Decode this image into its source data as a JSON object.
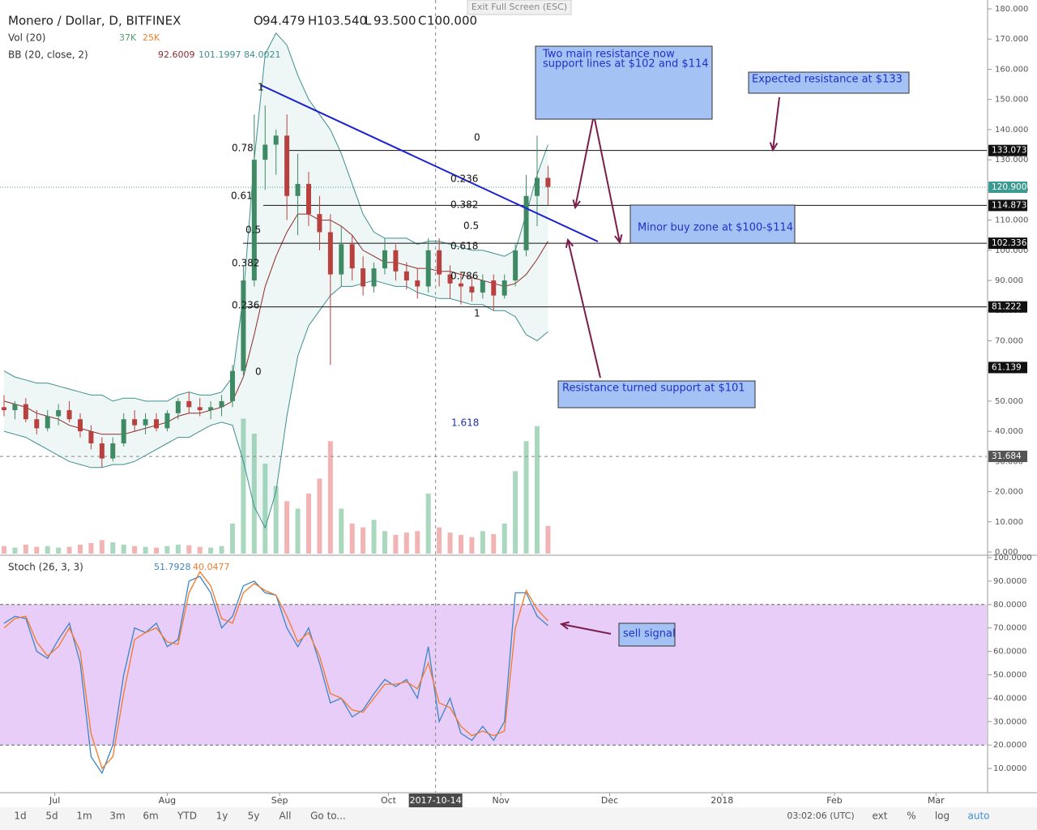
{
  "chart_data": [
    {
      "type": "candlestick",
      "title": "Monero / Dollar, D, BITFINEX",
      "ohlc_legend": [
        {
          "key": "O",
          "value": "94.479"
        },
        {
          "key": "H",
          "value": "103.540"
        },
        {
          "key": "L",
          "value": "93.500"
        },
        {
          "key": "C",
          "value": "100.000"
        }
      ],
      "x": [
        "2017-06-17",
        "2017-06-20",
        "2017-06-23",
        "2017-06-26",
        "2017-06-29",
        "2017-07-02",
        "2017-07-05",
        "2017-07-08",
        "2017-07-11",
        "2017-07-14",
        "2017-07-17",
        "2017-07-20",
        "2017-07-23",
        "2017-07-26",
        "2017-07-29",
        "2017-08-01",
        "2017-08-04",
        "2017-08-07",
        "2017-08-10",
        "2017-08-13",
        "2017-08-16",
        "2017-08-19",
        "2017-08-22",
        "2017-08-25",
        "2017-08-28",
        "2017-08-31",
        "2017-09-03",
        "2017-09-06",
        "2017-09-09",
        "2017-09-12",
        "2017-09-15",
        "2017-09-18",
        "2017-09-21",
        "2017-09-24",
        "2017-09-27",
        "2017-09-30",
        "2017-10-03",
        "2017-10-06",
        "2017-10-09",
        "2017-10-12",
        "2017-10-15",
        "2017-10-18",
        "2017-10-21",
        "2017-10-24",
        "2017-10-27",
        "2017-10-30",
        "2017-11-02",
        "2017-11-05",
        "2017-11-08",
        "2017-11-11",
        "2017-11-14"
      ],
      "open": [
        48,
        47,
        49,
        44,
        41,
        45,
        47,
        44,
        40,
        36,
        31,
        36,
        44,
        42,
        44,
        41,
        46,
        50,
        48,
        47,
        48,
        50,
        60,
        90,
        130,
        135,
        138,
        118,
        122,
        112,
        106,
        92,
        102,
        94,
        88,
        94,
        100,
        93,
        90,
        88,
        100,
        92,
        89,
        88,
        86,
        90,
        85,
        90,
        100,
        118,
        124
      ],
      "high": [
        52,
        50,
        51,
        47,
        47,
        49,
        50,
        46,
        42,
        38,
        38,
        46,
        47,
        46,
        46,
        47,
        51,
        53,
        51,
        50,
        52,
        62,
        95,
        145,
        148,
        140,
        145,
        132,
        126,
        118,
        112,
        108,
        105,
        98,
        96,
        104,
        102,
        96,
        94,
        104,
        104,
        95,
        93,
        91,
        92,
        92,
        92,
        102,
        125,
        138,
        128
      ],
      "low": [
        45,
        44,
        43,
        39,
        40,
        42,
        43,
        38,
        34,
        28,
        30,
        35,
        40,
        39,
        40,
        40,
        44,
        46,
        45,
        44,
        45,
        48,
        58,
        88,
        120,
        125,
        110,
        105,
        108,
        100,
        62,
        88,
        90,
        85,
        86,
        92,
        90,
        87,
        84,
        86,
        88,
        84,
        82,
        83,
        84,
        80,
        84,
        88,
        98,
        108,
        115
      ],
      "close": [
        47,
        49,
        44,
        41,
        45,
        47,
        44,
        40,
        36,
        31,
        36,
        44,
        42,
        44,
        41,
        46,
        50,
        48,
        47,
        48,
        50,
        60,
        90,
        130,
        135,
        138,
        118,
        122,
        112,
        106,
        92,
        102,
        94,
        88,
        94,
        100,
        93,
        90,
        88,
        100,
        92,
        89,
        88,
        86,
        90,
        85,
        90,
        100,
        118,
        124,
        121
      ],
      "up_color": "#3f8a64",
      "down_color": "#b8403f",
      "xlim": [
        "2017-06-17",
        "2018-03-15"
      ],
      "xticks": [
        {
          "value": "2017-07-01",
          "label": "Jul"
        },
        {
          "value": "2017-08-01",
          "label": "Aug"
        },
        {
          "value": "2017-09-01",
          "label": "Sep"
        },
        {
          "value": "2017-10-01",
          "label": "Oct"
        },
        {
          "value": "2017-11-01",
          "label": "Nov"
        },
        {
          "value": "2017-12-01",
          "label": "Dec"
        },
        {
          "value": "2018-01-01",
          "label": "2018"
        },
        {
          "value": "2018-02-01",
          "label": "Feb"
        },
        {
          "value": "2018-03-01",
          "label": "Mar"
        }
      ],
      "ylim": [
        0,
        180
      ],
      "yticks": [
        {
          "value": 0,
          "label": "0.000"
        },
        {
          "value": 10,
          "label": "10.000"
        },
        {
          "value": 20,
          "label": "20.000"
        },
        {
          "value": 30,
          "label": "30.000"
        },
        {
          "value": 40,
          "label": "40.000"
        },
        {
          "value": 50,
          "label": "50.000"
        },
        {
          "value": 60,
          "label": "60.000"
        },
        {
          "value": 70,
          "label": "70.000"
        },
        {
          "value": 80,
          "label": "80.000"
        },
        {
          "value": 90,
          "label": "90.000"
        },
        {
          "value": 100,
          "label": "100.000"
        },
        {
          "value": 110,
          "label": "110.000"
        },
        {
          "value": 120,
          "label": "120.000"
        },
        {
          "value": 130,
          "label": "130.000"
        },
        {
          "value": 140,
          "label": "140.000"
        },
        {
          "value": 150,
          "label": "150.000"
        },
        {
          "value": 160,
          "label": "160.000"
        },
        {
          "value": 170,
          "label": "170.000"
        },
        {
          "value": 180,
          "label": "180.000"
        }
      ],
      "bb": {
        "name": "BB (20, close, 2)",
        "legend": [
          "92.6009",
          "101.1997",
          "84.0021"
        ],
        "line_color": "#3f8f8f",
        "mid_color": "#8b2b2b",
        "upper": [
          60,
          58,
          57,
          56,
          56,
          55,
          54,
          53,
          52,
          52,
          50,
          51,
          51,
          50,
          50,
          50,
          52,
          53,
          52,
          52,
          53,
          58,
          85,
          130,
          165,
          172,
          168,
          158,
          150,
          145,
          140,
          132,
          122,
          112,
          106,
          104,
          104,
          104,
          102,
          103,
          103,
          102,
          101,
          100,
          100,
          99,
          98,
          100,
          112,
          125,
          135
        ],
        "middle": [
          50,
          49,
          48,
          46,
          45,
          44,
          42,
          41,
          40,
          39,
          39,
          39,
          40,
          41,
          42,
          43,
          45,
          46,
          46,
          47,
          48,
          50,
          58,
          72,
          88,
          98,
          106,
          112,
          112,
          110,
          110,
          108,
          105,
          100,
          98,
          96,
          96,
          95,
          94,
          94,
          93,
          93,
          92,
          91,
          90,
          89,
          88,
          89,
          92,
          97,
          103
        ],
        "lower": [
          40,
          39,
          38,
          36,
          34,
          32,
          30,
          29,
          28,
          28,
          29,
          29,
          30,
          32,
          34,
          36,
          38,
          38,
          40,
          42,
          43,
          42,
          30,
          15,
          8,
          20,
          45,
          65,
          75,
          80,
          85,
          88,
          88,
          89,
          90,
          89,
          88,
          88,
          86,
          85,
          84,
          84,
          83,
          82,
          82,
          80,
          80,
          78,
          72,
          70,
          73
        ]
      },
      "volume": {
        "name": "Vol (20)",
        "legend": [
          "37K",
          "25K"
        ],
        "ylim": [
          0,
          200
        ],
        "up_color": "#a9d8bf",
        "down_color": "#f1b3b3",
        "values": [
          10,
          8,
          12,
          9,
          10,
          8,
          9,
          12,
          14,
          18,
          15,
          12,
          10,
          9,
          8,
          10,
          12,
          11,
          9,
          8,
          10,
          40,
          180,
          160,
          120,
          90,
          70,
          60,
          80,
          100,
          150,
          60,
          40,
          35,
          45,
          30,
          25,
          28,
          30,
          80,
          35,
          28,
          25,
          22,
          30,
          26,
          40,
          110,
          150,
          170,
          37
        ]
      },
      "levels": [
        {
          "value": 133.073,
          "label": "133.073"
        },
        {
          "value": 120.9,
          "label": "120.900"
        },
        {
          "value": 114.873,
          "label": "114.873"
        },
        {
          "value": 102.336,
          "label": "102.336"
        },
        {
          "value": 81.222,
          "label": "81.222"
        },
        {
          "value": 61.139,
          "label": "61.139"
        },
        {
          "value": 31.684,
          "label": "31.684"
        }
      ],
      "crosshair": {
        "x": "2017-10-14",
        "label": "2017-10-14"
      }
    },
    {
      "type": "line",
      "title": "Stoch (26, 3, 3)",
      "series": [
        {
          "color": "#3d85c6",
          "legend": "51.7928",
          "values": [
            72,
            75,
            74,
            60,
            57,
            65,
            72,
            55,
            15,
            8,
            20,
            50,
            70,
            68,
            72,
            62,
            65,
            90,
            92,
            85,
            70,
            75,
            88,
            90,
            85,
            84,
            70,
            62,
            70,
            55,
            38,
            40,
            32,
            35,
            42,
            48,
            45,
            48,
            40,
            62,
            30,
            40,
            25,
            22,
            28,
            22,
            30,
            85,
            85,
            75,
            71
          ]
        },
        {
          "color": "#f07a2a",
          "legend": "40.0477",
          "values": [
            70,
            74,
            75,
            64,
            58,
            62,
            70,
            60,
            25,
            10,
            15,
            42,
            65,
            68,
            70,
            64,
            63,
            85,
            94,
            88,
            74,
            72,
            85,
            89,
            86,
            84,
            75,
            64,
            68,
            58,
            42,
            40,
            35,
            34,
            40,
            46,
            46,
            47,
            44,
            55,
            38,
            36,
            28,
            24,
            26,
            24,
            26,
            70,
            86,
            78,
            73
          ]
        }
      ],
      "band": [
        20,
        80
      ],
      "band_color": "#e7cdf8",
      "ylim": [
        0,
        100
      ],
      "yticks": [
        {
          "value": 10,
          "label": "10.0000"
        },
        {
          "value": 20,
          "label": "20.0000"
        },
        {
          "value": 30,
          "label": "30.0000"
        },
        {
          "value": 40,
          "label": "40.0000"
        },
        {
          "value": 50,
          "label": "50.0000"
        },
        {
          "value": 60,
          "label": "60.0000"
        },
        {
          "value": 70,
          "label": "70.0000"
        },
        {
          "value": 80,
          "label": "80.0000"
        },
        {
          "value": 90,
          "label": "90.0000"
        },
        {
          "value": 100,
          "label": "100.0000"
        }
      ]
    }
  ],
  "annotations": {
    "boxes": [
      {
        "lines": [
          "Two main resistance now",
          "support lines at $102 and $114"
        ]
      },
      {
        "lines": [
          "Expected resistance at $133"
        ]
      },
      {
        "lines": [
          "Minor buy zone at $100-$114"
        ]
      },
      {
        "lines": [
          "Resistance turned support at $101"
        ]
      },
      {
        "lines": [
          "sell signal"
        ]
      }
    ],
    "fib_left": [
      "1",
      "0.78",
      "0.61",
      "0.5",
      "0.382",
      "0.236",
      "0"
    ],
    "fib_right": [
      "0",
      "0.236",
      "0.382",
      "0.5",
      "0.618",
      "0.786",
      "1",
      "1.618"
    ]
  },
  "toolbar": {
    "exit": "Exit Full Screen (ESC)",
    "ranges": [
      "1d",
      "5d",
      "1m",
      "3m",
      "6m",
      "YTD",
      "1y",
      "5y",
      "All",
      "Go to..."
    ],
    "clock": "03:02:06 (UTC)",
    "options": [
      "ext",
      "%",
      "log",
      "auto"
    ]
  }
}
